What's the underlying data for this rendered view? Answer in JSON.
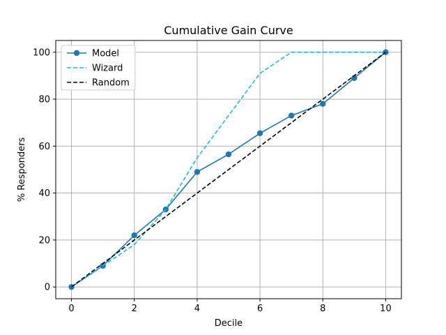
{
  "chart_data": {
    "type": "line",
    "title": "Cumulative Gain Curve",
    "xlabel": "Decile",
    "ylabel": "% Responders",
    "xlim": [
      -0.5,
      10.5
    ],
    "ylim": [
      -5,
      105
    ],
    "xticks": [
      0,
      2,
      4,
      6,
      8,
      10
    ],
    "yticks": [
      0,
      20,
      40,
      60,
      80,
      100
    ],
    "grid": true,
    "legend_position": "top-left",
    "series": [
      {
        "name": "Model",
        "color": "#1f77b4",
        "style": "solid",
        "markers": true,
        "x": [
          0,
          1,
          2,
          3,
          4,
          5,
          6,
          7,
          8,
          9,
          10
        ],
        "y": [
          0,
          9,
          22,
          33,
          49,
          56.5,
          65.5,
          73,
          78,
          89,
          100
        ]
      },
      {
        "name": "Wizard",
        "color": "#17becf",
        "style": "dashed",
        "markers": false,
        "x": [
          0,
          2,
          3,
          4,
          5,
          6,
          7,
          8,
          9,
          10
        ],
        "y": [
          0,
          18,
          33,
          55,
          73,
          91,
          100,
          100,
          100,
          100
        ]
      },
      {
        "name": "Random",
        "color": "#000000",
        "style": "dashed",
        "markers": false,
        "x": [
          0,
          10
        ],
        "y": [
          0,
          100
        ]
      }
    ]
  }
}
